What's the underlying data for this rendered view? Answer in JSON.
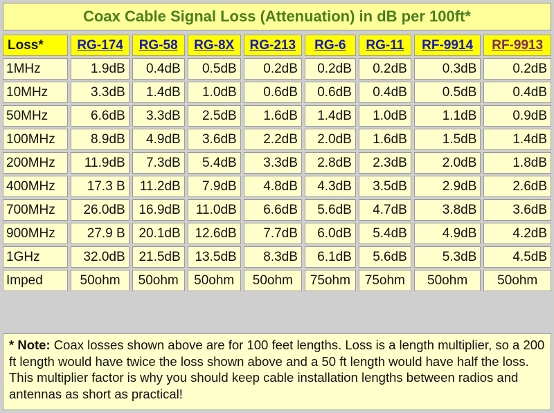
{
  "title": "Coax Cable Signal Loss (Attenuation) in dB per 100ft*",
  "corner_label": "Loss*",
  "columns": [
    "RG-174",
    "RG-58",
    "RG-8X",
    "RG-213",
    "RG-6",
    "RG-11",
    "RF-9914",
    "RF-9913"
  ],
  "rows": [
    {
      "label": "1MHz",
      "values": [
        "1.9dB",
        "0.4dB",
        "0.5dB",
        "0.2dB",
        "0.2dB",
        "0.2dB",
        "0.3dB",
        "0.2dB"
      ]
    },
    {
      "label": "10MHz",
      "values": [
        "3.3dB",
        "1.4dB",
        "1.0dB",
        "0.6dB",
        "0.6dB",
        "0.4dB",
        "0.5dB",
        "0.4dB"
      ]
    },
    {
      "label": "50MHz",
      "values": [
        "6.6dB",
        "3.3dB",
        "2.5dB",
        "1.6dB",
        "1.4dB",
        "1.0dB",
        "1.1dB",
        "0.9dB"
      ]
    },
    {
      "label": "100MHz",
      "values": [
        "8.9dB",
        "4.9dB",
        "3.6dB",
        "2.2dB",
        "2.0dB",
        "1.6dB",
        "1.5dB",
        "1.4dB"
      ]
    },
    {
      "label": "200MHz",
      "values": [
        "11.9dB",
        "7.3dB",
        "5.4dB",
        "3.3dB",
        "2.8dB",
        "2.3dB",
        "2.0dB",
        "1.8dB"
      ]
    },
    {
      "label": "400MHz",
      "values": [
        "17.3 B",
        "11.2dB",
        "7.9dB",
        "4.8dB",
        "4.3dB",
        "3.5dB",
        "2.9dB",
        "2.6dB"
      ]
    },
    {
      "label": "700MHz",
      "values": [
        "26.0dB",
        "16.9dB",
        "11.0dB",
        "6.6dB",
        "5.6dB",
        "4.7dB",
        "3.8dB",
        "3.6dB"
      ]
    },
    {
      "label": "900MHz",
      "values": [
        "27.9 B",
        "20.1dB",
        "12.6dB",
        "7.7dB",
        "6.0dB",
        "5.4dB",
        "4.9dB",
        "4.2dB"
      ]
    },
    {
      "label": "1GHz",
      "values": [
        "32.0dB",
        "21.5dB",
        "13.5dB",
        "8.3dB",
        "6.1dB",
        "5.6dB",
        "5.3dB",
        "4.5dB"
      ]
    }
  ],
  "imped": {
    "label": "Imped",
    "values": [
      "50ohm",
      "50ohm",
      "50ohm",
      "50ohm",
      "75ohm",
      "75ohm",
      "50ohm",
      "50ohm"
    ]
  },
  "note": {
    "prefix": "* Note:",
    "text": " Coax losses shown above are for 100 feet lengths. Loss is a length multiplier, so a 200 ft length would have twice the loss shown above and a 50 ft length would have half the loss. This multiplier factor is why you should keep cable installation lengths between radios and antennas as short as practical!"
  },
  "colors": {
    "title_text": "#4a7d1e",
    "header_bg": "#ffff00",
    "cell_bg": "#ffffcc",
    "link": "#1515c8",
    "link_visited": "#7a2a6a"
  }
}
